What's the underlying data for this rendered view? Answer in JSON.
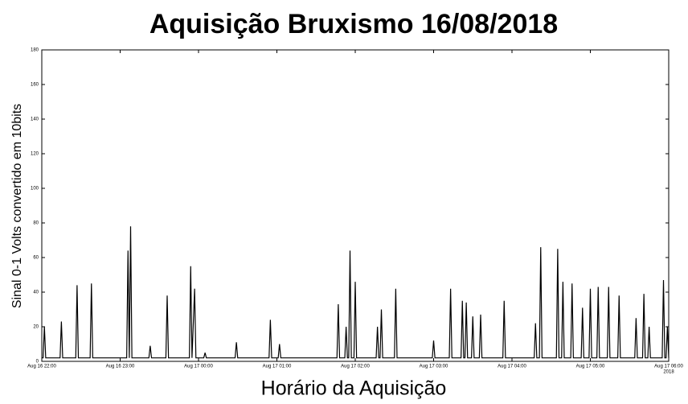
{
  "chart_data": {
    "type": "line",
    "title": "Aquisição Bruxismo 16/08/2018",
    "xlabel": "Horário da Aquisição",
    "ylabel": "Sinal 0-1 Volts convertido em 10bits",
    "x": [
      "2018-08-16 22:00",
      "2018-08-16 22:01",
      "2018-08-16 22:02",
      "2018-08-16 22:03",
      "2018-08-16 22:14",
      "2018-08-16 22:15",
      "2018-08-16 22:16",
      "2018-08-16 22:26",
      "2018-08-16 22:27",
      "2018-08-16 22:28",
      "2018-08-16 22:37",
      "2018-08-16 22:38",
      "2018-08-16 22:39",
      "2018-08-16 23:05",
      "2018-08-16 23:06",
      "2018-08-16 23:07",
      "2018-08-16 23:08",
      "2018-08-16 23:09",
      "2018-08-16 23:22",
      "2018-08-16 23:23",
      "2018-08-16 23:24",
      "2018-08-16 23:35",
      "2018-08-16 23:36",
      "2018-08-16 23:37",
      "2018-08-16 23:53",
      "2018-08-16 23:54",
      "2018-08-16 23:55",
      "2018-08-16 23:57",
      "2018-08-16 23:58",
      "2018-08-17 00:04",
      "2018-08-17 00:05",
      "2018-08-17 00:06",
      "2018-08-17 00:28",
      "2018-08-17 00:29",
      "2018-08-17 00:30",
      "2018-08-17 00:54",
      "2018-08-17 00:55",
      "2018-08-17 00:56",
      "2018-08-17 01:01",
      "2018-08-17 01:02",
      "2018-08-17 01:03",
      "2018-08-17 01:46",
      "2018-08-17 01:47",
      "2018-08-17 01:48",
      "2018-08-17 01:52",
      "2018-08-17 01:53",
      "2018-08-17 01:54",
      "2018-08-17 01:55",
      "2018-08-17 01:56",
      "2018-08-17 01:57",
      "2018-08-17 01:59",
      "2018-08-17 02:00",
      "2018-08-17 02:01",
      "2018-08-17 02:16",
      "2018-08-17 02:17",
      "2018-08-17 02:18",
      "2018-08-17 02:19",
      "2018-08-17 02:20",
      "2018-08-17 02:21",
      "2018-08-17 02:30",
      "2018-08-17 02:31",
      "2018-08-17 02:32",
      "2018-08-17 02:59",
      "2018-08-17 03:00",
      "2018-08-17 03:01",
      "2018-08-17 03:12",
      "2018-08-17 03:13",
      "2018-08-17 03:14",
      "2018-08-17 03:21",
      "2018-08-17 03:22",
      "2018-08-17 03:23",
      "2018-08-17 03:24",
      "2018-08-17 03:25",
      "2018-08-17 03:26",
      "2018-08-17 03:29",
      "2018-08-17 03:30",
      "2018-08-17 03:31",
      "2018-08-17 03:35",
      "2018-08-17 03:36",
      "2018-08-17 03:37",
      "2018-08-17 03:53",
      "2018-08-17 03:54",
      "2018-08-17 03:55",
      "2018-08-17 04:17",
      "2018-08-17 04:18",
      "2018-08-17 04:19",
      "2018-08-17 04:21",
      "2018-08-17 04:22",
      "2018-08-17 04:23",
      "2018-08-17 04:34",
      "2018-08-17 04:35",
      "2018-08-17 04:36",
      "2018-08-17 04:38",
      "2018-08-17 04:39",
      "2018-08-17 04:40",
      "2018-08-17 04:45",
      "2018-08-17 04:46",
      "2018-08-17 04:47",
      "2018-08-17 04:53",
      "2018-08-17 04:54",
      "2018-08-17 04:55",
      "2018-08-17 04:59",
      "2018-08-17 05:00",
      "2018-08-17 05:01",
      "2018-08-17 05:05",
      "2018-08-17 05:06",
      "2018-08-17 05:07",
      "2018-08-17 05:13",
      "2018-08-17 05:14",
      "2018-08-17 05:15",
      "2018-08-17 05:21",
      "2018-08-17 05:22",
      "2018-08-17 05:23",
      "2018-08-17 05:34",
      "2018-08-17 05:35",
      "2018-08-17 05:36",
      "2018-08-17 05:40",
      "2018-08-17 05:41",
      "2018-08-17 05:42",
      "2018-08-17 05:44",
      "2018-08-17 05:45",
      "2018-08-17 05:46",
      "2018-08-17 05:55",
      "2018-08-17 05:56",
      "2018-08-17 05:57",
      "2018-08-17 05:58",
      "2018-08-17 05:59",
      "2018-08-17 06:00"
    ],
    "series": [
      {
        "color": "#000000",
        "values": [
          2,
          2,
          20,
          2,
          2,
          23,
          2,
          2,
          44,
          2,
          2,
          45,
          2,
          2,
          64,
          2,
          78,
          2,
          2,
          9,
          2,
          2,
          38,
          2,
          2,
          55,
          2,
          42,
          2,
          2,
          5,
          2,
          2,
          11,
          2,
          2,
          24,
          2,
          2,
          10,
          2,
          2,
          33,
          2,
          2,
          20,
          2,
          2,
          64,
          2,
          2,
          46,
          2,
          2,
          20,
          2,
          2,
          30,
          2,
          2,
          42,
          2,
          2,
          12,
          2,
          2,
          42,
          2,
          2,
          35,
          2,
          2,
          34,
          2,
          2,
          26,
          2,
          2,
          27,
          2,
          2,
          35,
          2,
          2,
          22,
          2,
          2,
          66,
          2,
          2,
          65,
          2,
          2,
          46,
          2,
          2,
          45,
          2,
          2,
          31,
          2,
          2,
          42,
          2,
          2,
          43,
          2,
          2,
          43,
          2,
          2,
          38,
          2,
          2,
          25,
          2,
          2,
          39,
          2,
          2,
          20,
          2,
          2,
          47,
          2,
          2,
          20,
          2
        ]
      }
    ],
    "xlim": [
      "2018-08-16 22:00",
      "2018-08-17 06:00"
    ],
    "xticks": [
      {
        "value": "2018-08-16 22:00",
        "label": "Aug 16 22:00"
      },
      {
        "value": "2018-08-16 23:00",
        "label": "Aug 16 23:00"
      },
      {
        "value": "2018-08-17 00:00",
        "label": "Aug 17 00:00"
      },
      {
        "value": "2018-08-17 01:00",
        "label": "Aug 17 01:00"
      },
      {
        "value": "2018-08-17 02:00",
        "label": "Aug 17 02:00"
      },
      {
        "value": "2018-08-17 03:00",
        "label": "Aug 17 03:00"
      },
      {
        "value": "2018-08-17 04:00",
        "label": "Aug 17 04:00"
      },
      {
        "value": "2018-08-17 05:00",
        "label": "Aug 17 05:00"
      },
      {
        "value": "2018-08-17 06:00",
        "label": "Aug 17 06:00"
      }
    ],
    "x_year": "2018",
    "ylim": [
      0,
      180
    ],
    "yticks": [
      0,
      20,
      40,
      60,
      80,
      100,
      120,
      140,
      160,
      180
    ]
  }
}
